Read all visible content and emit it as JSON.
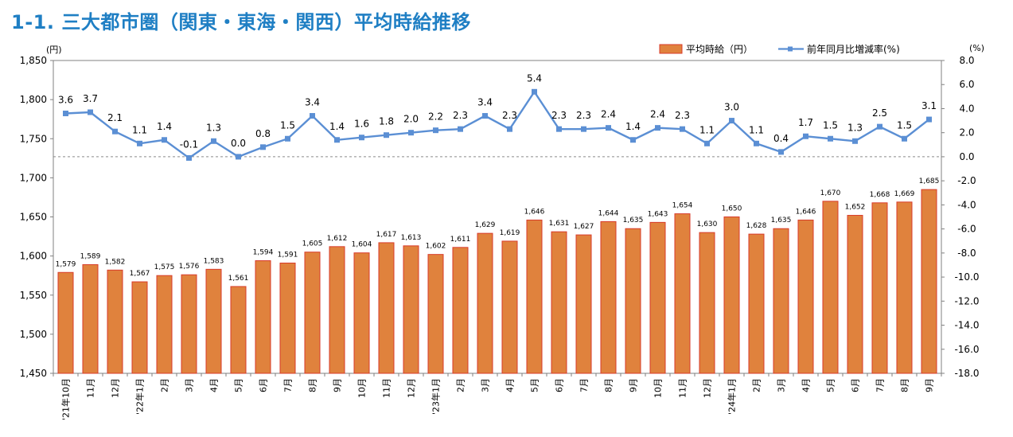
{
  "title": "1-1. 三大都市圏（関東・東海・関西）平均時給推移",
  "colors": {
    "bar_fill": "#e0823d",
    "bar_stroke": "#d83b2a",
    "line": "#5b8fd4",
    "title": "#1f7fc4"
  },
  "chart_data": {
    "type": "bar",
    "categories": [
      "'21年10月",
      "11月",
      "12月",
      "'22年1月",
      "2月",
      "3月",
      "4月",
      "5月",
      "6月",
      "7月",
      "8月",
      "9月",
      "10月",
      "11月",
      "12月",
      "'23年1月",
      "2月",
      "3月",
      "4月",
      "5月",
      "6月",
      "7月",
      "8月",
      "9月",
      "10月",
      "11月",
      "12月",
      "'24年1月",
      "2月",
      "3月",
      "4月",
      "5月",
      "6月",
      "7月",
      "8月",
      "9月"
    ],
    "series": [
      {
        "name": "平均時給（円）",
        "type": "bar",
        "axis": "left",
        "values": [
          1579,
          1589,
          1582,
          1567,
          1575,
          1576,
          1583,
          1561,
          1594,
          1591,
          1605,
          1612,
          1604,
          1617,
          1613,
          1602,
          1611,
          1629,
          1619,
          1646,
          1631,
          1627,
          1644,
          1635,
          1643,
          1654,
          1630,
          1650,
          1628,
          1635,
          1646,
          1670,
          1652,
          1668,
          1669,
          1685
        ]
      },
      {
        "name": "前年同月比増減率(%)",
        "type": "line",
        "axis": "right",
        "values": [
          3.6,
          3.7,
          2.1,
          1.1,
          1.4,
          -0.1,
          1.3,
          0.0,
          0.8,
          1.5,
          3.4,
          1.4,
          1.6,
          1.8,
          2.0,
          2.2,
          2.3,
          3.4,
          2.3,
          5.4,
          2.3,
          2.3,
          2.4,
          1.4,
          2.4,
          2.3,
          1.1,
          3.0,
          1.1,
          0.4,
          1.7,
          1.5,
          1.3,
          2.5,
          1.5,
          3.1
        ]
      }
    ],
    "y_left": {
      "unit": "(円)",
      "ylim": [
        1450,
        1850
      ],
      "ticks": [
        "1,450",
        "1,500",
        "1,550",
        "1,600",
        "1,650",
        "1,700",
        "1,750",
        "1,800",
        "1,850"
      ]
    },
    "y_right": {
      "unit": "(%)",
      "ylim": [
        -18,
        8
      ],
      "ticks": [
        "-18.0",
        "-16.0",
        "-14.0",
        "-12.0",
        "-10.0",
        "-8.0",
        "-6.0",
        "-4.0",
        "-2.0",
        "0.0",
        "2.0",
        "4.0",
        "6.0",
        "8.0"
      ]
    },
    "legend_placement": "top-right",
    "grid": false
  }
}
